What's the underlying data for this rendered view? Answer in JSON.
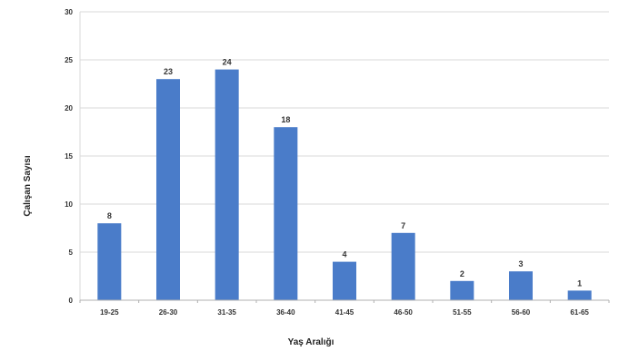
{
  "chart_data": {
    "type": "bar",
    "title": "",
    "xlabel": "Yaş Aralığı",
    "ylabel": "Çalışan Sayısı",
    "categories": [
      "19-25",
      "26-30",
      "31-35",
      "36-40",
      "41-45",
      "46-50",
      "51-55",
      "56-60",
      "61-65"
    ],
    "values": [
      8,
      23,
      24,
      18,
      4,
      7,
      2,
      3,
      1
    ],
    "ylim": [
      0,
      30
    ],
    "yticks": [
      "0",
      "5",
      "10",
      "15",
      "20",
      "25",
      "30"
    ],
    "grid": true,
    "legend": "none",
    "bar_color": "#4a7cc9",
    "grid_color": "#d9d9d9",
    "axis_color": "#b0b0b0"
  }
}
